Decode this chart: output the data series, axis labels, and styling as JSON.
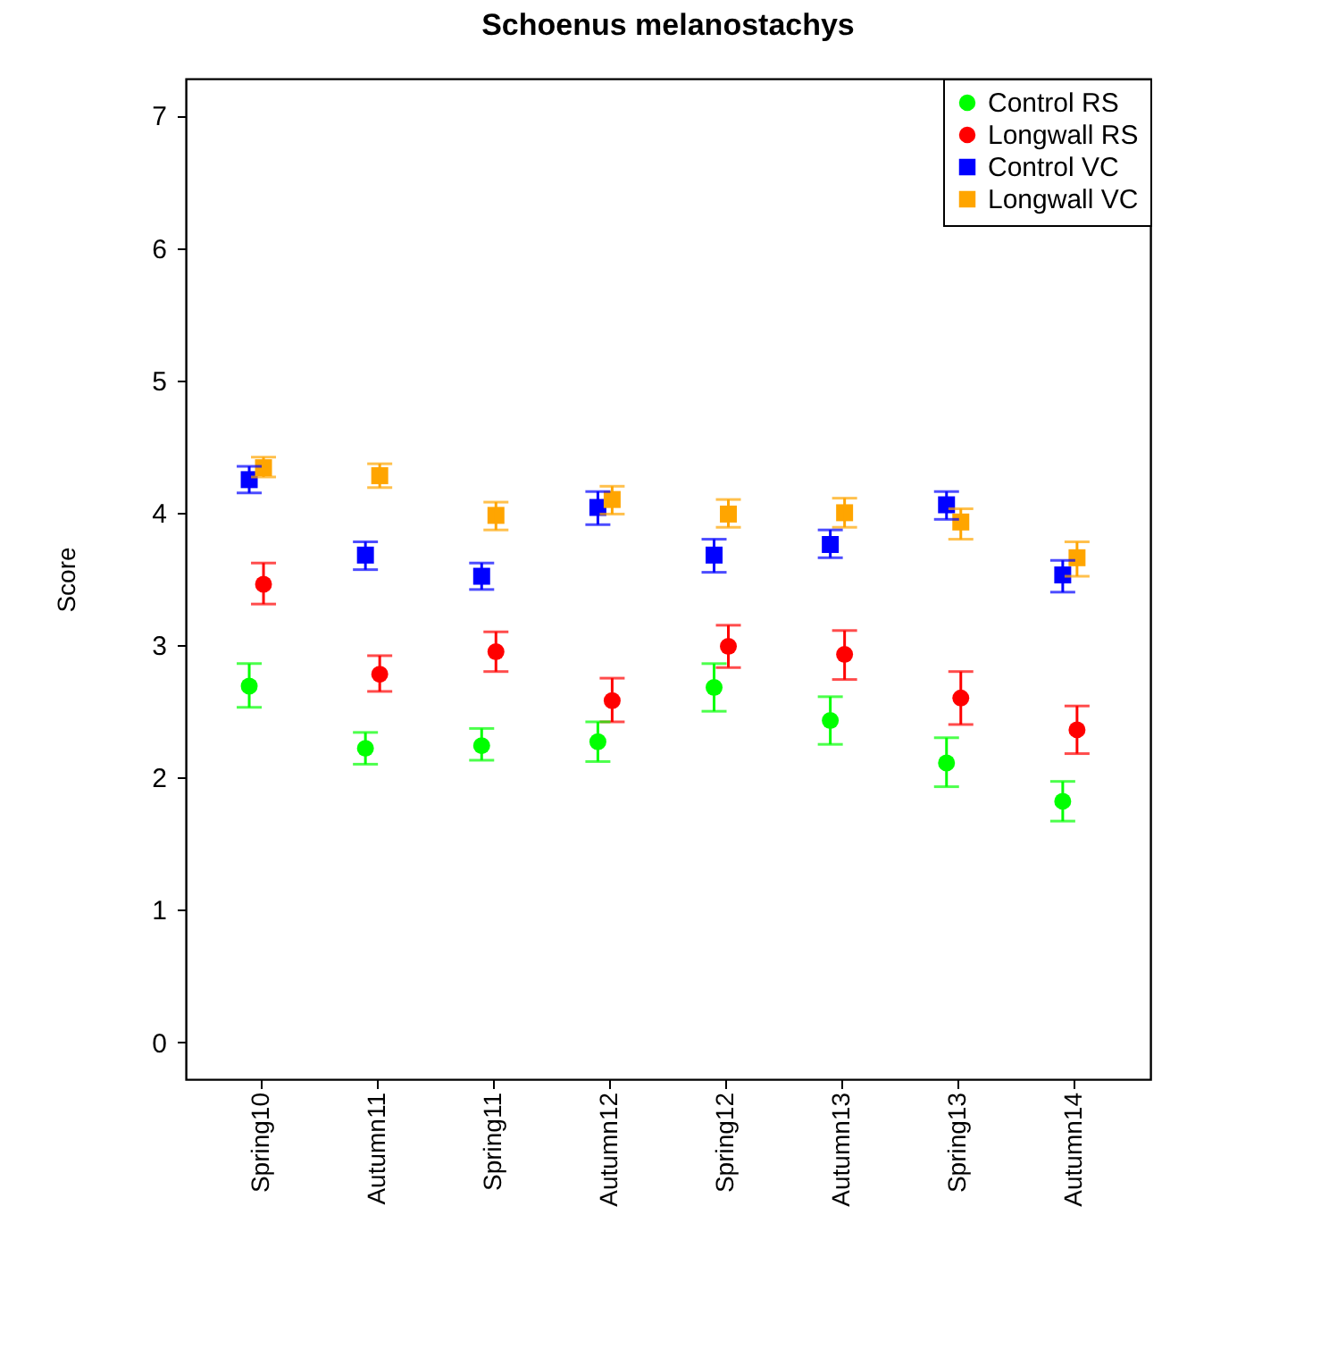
{
  "chart_data": {
    "type": "scatter",
    "title": "Schoenus melanostachys",
    "ylabel": "Score",
    "categories": [
      "Spring10",
      "Autumn11",
      "Spring11",
      "Autumn12",
      "Spring12",
      "Autumn13",
      "Spring13",
      "Autumn14"
    ],
    "series": [
      {
        "name": "Control RS",
        "color": "#00ff00",
        "marker": "circle",
        "values": [
          2.69,
          2.22,
          2.24,
          2.27,
          2.68,
          2.43,
          2.11,
          1.82
        ],
        "errors": [
          [
            2.53,
            2.86
          ],
          [
            2.1,
            2.34
          ],
          [
            2.13,
            2.37
          ],
          [
            2.12,
            2.42
          ],
          [
            2.5,
            2.86
          ],
          [
            2.25,
            2.61
          ],
          [
            1.93,
            2.3
          ],
          [
            1.67,
            1.97
          ]
        ]
      },
      {
        "name": "Longwall RS",
        "color": "#ff0000",
        "marker": "circle",
        "values": [
          3.46,
          2.78,
          2.95,
          2.58,
          2.99,
          2.93,
          2.6,
          2.36
        ],
        "errors": [
          [
            3.31,
            3.62
          ],
          [
            2.65,
            2.92
          ],
          [
            2.8,
            3.1
          ],
          [
            2.42,
            2.75
          ],
          [
            2.83,
            3.15
          ],
          [
            2.74,
            3.11
          ],
          [
            2.4,
            2.8
          ],
          [
            2.18,
            2.54
          ]
        ]
      },
      {
        "name": "Control VC",
        "color": "#0000ff",
        "marker": "square",
        "values": [
          4.25,
          3.68,
          3.52,
          4.04,
          3.68,
          3.76,
          4.06,
          3.53
        ],
        "errors": [
          [
            4.15,
            4.35
          ],
          [
            3.57,
            3.78
          ],
          [
            3.42,
            3.62
          ],
          [
            3.91,
            4.16
          ],
          [
            3.55,
            3.8
          ],
          [
            3.66,
            3.87
          ],
          [
            3.95,
            4.16
          ],
          [
            3.4,
            3.64
          ]
        ]
      },
      {
        "name": "Longwall VC",
        "color": "#ffa500",
        "marker": "square",
        "values": [
          4.34,
          4.28,
          3.98,
          4.1,
          3.99,
          4.0,
          3.93,
          3.66
        ],
        "errors": [
          [
            4.27,
            4.42
          ],
          [
            4.19,
            4.37
          ],
          [
            3.87,
            4.08
          ],
          [
            3.99,
            4.2
          ],
          [
            3.89,
            4.1
          ],
          [
            3.89,
            4.11
          ],
          [
            3.8,
            4.03
          ],
          [
            3.52,
            3.78
          ]
        ]
      }
    ],
    "ylim": [
      -0.28,
      7.28
    ],
    "yticks": [
      0,
      1,
      2,
      3,
      4,
      5,
      6,
      7
    ],
    "legend": "top right",
    "grid": false
  }
}
